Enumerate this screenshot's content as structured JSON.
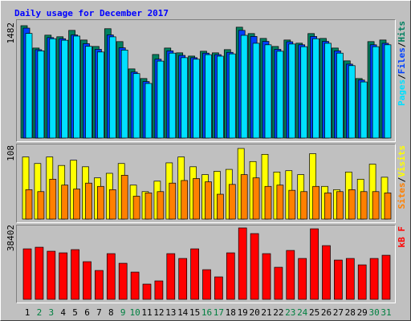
{
  "chart_data": [
    {
      "type": "bar",
      "title": "Daily usage for December 2017",
      "legend_separator": "/",
      "ylim": [
        0,
        1482
      ],
      "yticks": [
        1482
      ],
      "series": [
        {
          "name": "Hits",
          "color": "#008060",
          "values": [
            1482,
            1187,
            1357,
            1336,
            1420,
            1293,
            1208,
            1442,
            1272,
            912,
            785,
            1102,
            1187,
            1124,
            1081,
            1145,
            1124,
            1166,
            1462,
            1378,
            1314,
            1208,
            1293,
            1251,
            1378,
            1314,
            1187,
            1018,
            785,
            1272,
            1293
          ]
        },
        {
          "name": "Files",
          "color": "#0040ff",
          "values": [
            1450,
            1165,
            1325,
            1310,
            1360,
            1245,
            1170,
            1360,
            1190,
            870,
            745,
            1040,
            1150,
            1090,
            1060,
            1120,
            1100,
            1130,
            1420,
            1340,
            1275,
            1170,
            1270,
            1230,
            1340,
            1275,
            1150,
            975,
            765,
            1230,
            1250
          ]
        },
        {
          "name": "Pages",
          "color": "#00e0ff",
          "values": [
            1380,
            1150,
            1310,
            1290,
            1345,
            1210,
            1135,
            1335,
            1160,
            850,
            720,
            1015,
            1120,
            1060,
            1040,
            1100,
            1080,
            1110,
            1355,
            1250,
            1230,
            1145,
            1240,
            1205,
            1310,
            1250,
            1120,
            955,
            740,
            1205,
            1230
          ]
        }
      ]
    },
    {
      "type": "bar",
      "ylim": [
        0,
        108
      ],
      "yticks": [
        108
      ],
      "series": [
        {
          "name": "Visits",
          "color": "#ffff00",
          "values": [
            95,
            85,
            95,
            82,
            90,
            80,
            63,
            70,
            85,
            52,
            42,
            58,
            86,
            95,
            80,
            68,
            73,
            76,
            108,
            88,
            99,
            72,
            74,
            68,
            100,
            50,
            45,
            72,
            61,
            84,
            64
          ]
        },
        {
          "name": "Sites",
          "color": "#ff8000",
          "values": [
            45,
            42,
            61,
            52,
            46,
            55,
            50,
            45,
            67,
            35,
            40,
            42,
            55,
            59,
            62,
            57,
            38,
            53,
            68,
            63,
            50,
            52,
            44,
            42,
            50,
            40,
            42,
            45,
            42,
            42,
            40
          ]
        }
      ]
    },
    {
      "type": "bar",
      "ylim": [
        0,
        38402
      ],
      "yticks": [
        38402
      ],
      "categories": [
        "1",
        "2",
        "3",
        "4",
        "5",
        "6",
        "7",
        "8",
        "9",
        "10",
        "11",
        "12",
        "13",
        "14",
        "15",
        "16",
        "17",
        "18",
        "19",
        "20",
        "21",
        "22",
        "23",
        "24",
        "25",
        "26",
        "27",
        "28",
        "29",
        "30",
        "31"
      ],
      "category_colors": [
        "#000000",
        "#008040",
        "#008040",
        "#000000",
        "#000000",
        "#000000",
        "#000000",
        "#000000",
        "#008040",
        "#008040",
        "#000000",
        "#000000",
        "#000000",
        "#000000",
        "#000000",
        "#008040",
        "#008040",
        "#000000",
        "#000000",
        "#000000",
        "#000000",
        "#000000",
        "#008040",
        "#008040",
        "#000000",
        "#000000",
        "#000000",
        "#000000",
        "#000000",
        "#008040",
        "#008040"
      ],
      "series": [
        {
          "name": "kB F",
          "color": "#ff0000",
          "values": [
            27150,
            28020,
            25870,
            25000,
            26730,
            20250,
            15510,
            24570,
            19390,
            14650,
            8190,
            9910,
            24570,
            21980,
            27150,
            15940,
            12070,
            25000,
            38402,
            35350,
            24570,
            17240,
            26290,
            21980,
            37930,
            28880,
            21120,
            21980,
            18530,
            21980,
            23700
          ]
        }
      ]
    }
  ]
}
